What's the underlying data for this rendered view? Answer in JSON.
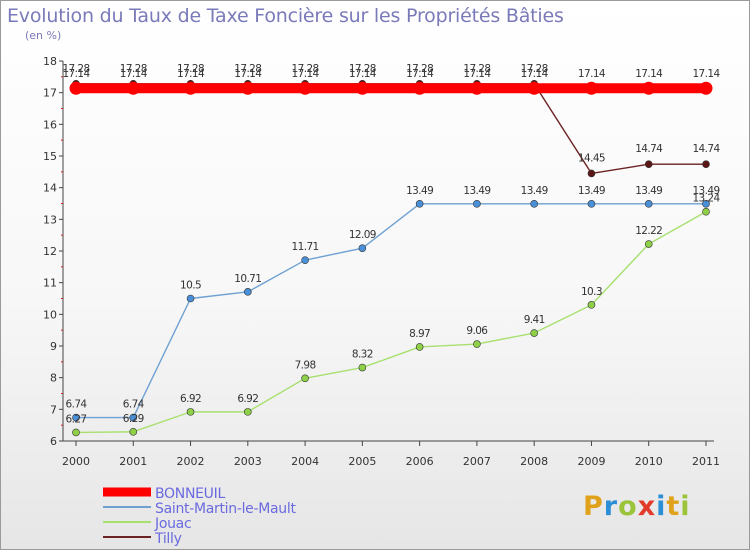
{
  "header": {
    "title": "Evolution du Taux de Taxe Foncière sur les Propriétés Bâties",
    "subtitle": "(en %)"
  },
  "logo": {
    "letters": [
      "P",
      "r",
      "o",
      "x",
      "i",
      "t",
      "i"
    ],
    "colors": [
      "#e0a21a",
      "#2c8fd6",
      "#9cc43a",
      "#e23a2b",
      "#2c8fd6",
      "#e0a21a",
      "#9cc43a"
    ]
  },
  "chart_data": {
    "type": "line",
    "title": "Evolution du Taux de Taxe Foncière sur les Propriétés Bâties",
    "ylabel": "(en %)",
    "xlabel": "",
    "categories": [
      "2000",
      "2001",
      "2002",
      "2003",
      "2004",
      "2005",
      "2006",
      "2007",
      "2008",
      "2009",
      "2010",
      "2011"
    ],
    "y_ticks": [
      "6",
      "7",
      "8",
      "9",
      "10",
      "11",
      "12",
      "13",
      "14",
      "15",
      "16",
      "17",
      "18"
    ],
    "ylim": [
      6,
      18
    ],
    "grid": false,
    "legend_position": "bottom-left",
    "series": [
      {
        "name": "BONNEUIL",
        "color": "#ff0000",
        "values": [
          17.14,
          17.14,
          17.14,
          17.14,
          17.14,
          17.14,
          17.14,
          17.14,
          17.14,
          17.14,
          17.14,
          17.14
        ],
        "labels": [
          "17.14",
          "17.14",
          "17.14",
          "17.14",
          "17.14",
          "17.14",
          "17.14",
          "17.14",
          "17.14",
          "17.14",
          "17.14",
          "17.14"
        ]
      },
      {
        "name": "Saint-Martin-le-Mault",
        "color": "#6ea0d2",
        "values": [
          6.74,
          6.74,
          10.5,
          10.71,
          11.71,
          12.09,
          13.49,
          13.49,
          13.49,
          13.49,
          13.49,
          13.49
        ],
        "labels": [
          "6.74",
          "6.74",
          "10.5",
          "10.71",
          "11.71",
          "12.09",
          "13.49",
          "13.49",
          "13.49",
          "13.49",
          "13.49",
          "13.49"
        ]
      },
      {
        "name": "Jouac",
        "color": "#a8e070",
        "values": [
          6.27,
          6.29,
          6.92,
          6.92,
          7.98,
          8.32,
          8.97,
          9.06,
          9.41,
          10.3,
          12.22,
          13.24
        ],
        "labels": [
          "6.27",
          "6.29",
          "6.92",
          "6.92",
          "7.98",
          "8.32",
          "8.97",
          "9.06",
          "9.41",
          "10.3",
          "12.22",
          "13.24"
        ]
      },
      {
        "name": "Tilly",
        "color": "#6b2222",
        "values": [
          17.28,
          17.28,
          17.28,
          17.28,
          17.28,
          17.28,
          17.28,
          17.28,
          17.28,
          14.45,
          14.74,
          14.74
        ],
        "labels": [
          "17.28",
          "17.28",
          "17.28",
          "17.28",
          "17.28",
          "17.28",
          "17.28",
          "17.28",
          "17.28",
          "14.45",
          "14.74",
          "14.74"
        ]
      }
    ]
  }
}
